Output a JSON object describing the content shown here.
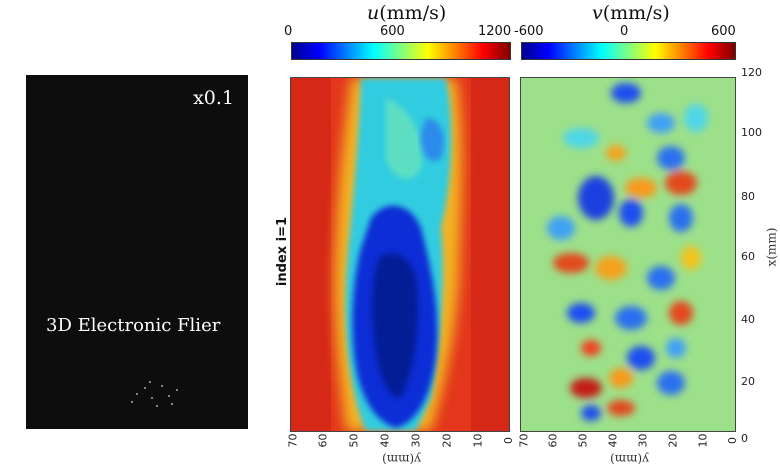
{
  "video": {
    "speed_label": "x0.1",
    "caption": "3D Electronic Flier"
  },
  "index_label": "index i=1",
  "u_colorbar": {
    "symbol": "u",
    "unit": "(mm/s)",
    "ticks": [
      "0",
      "600",
      "1200"
    ],
    "colormap": "jet"
  },
  "v_colorbar": {
    "symbol": "v",
    "unit": "(mm/s)",
    "ticks": [
      "-600",
      "0",
      "600"
    ],
    "colormap": "jet"
  },
  "y_axis": {
    "label": "y(mm)",
    "ticks": [
      "70",
      "60",
      "50",
      "40",
      "30",
      "20",
      "10",
      "0"
    ]
  },
  "x_axis": {
    "label": "x(mm)",
    "ticks": [
      "120",
      "100",
      "80",
      "60",
      "40",
      "20",
      "0"
    ]
  },
  "colors": {
    "u_background": "#e3361c",
    "u_core": "#0a2fd6",
    "u_shear": "#33cce0",
    "v_background": "#9de08a"
  }
}
